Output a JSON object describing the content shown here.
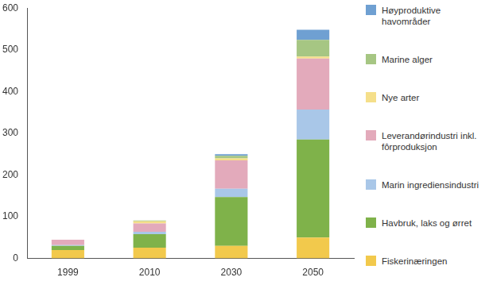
{
  "chart_data": {
    "type": "bar",
    "stacked": true,
    "legend": "right",
    "grid": false,
    "categories": [
      "1999",
      "2010",
      "2030",
      "2050"
    ],
    "ylim": [
      0,
      600
    ],
    "yticks": [
      0,
      100,
      200,
      300,
      400,
      500,
      600
    ],
    "series": [
      {
        "name": "Fiskerinæringen",
        "color": "#f2c94c",
        "values": [
          20,
          26,
          30,
          50
        ]
      },
      {
        "name": "Havbruk, laks og ørret",
        "color": "#7fb24a",
        "values": [
          10,
          32,
          117,
          235
        ]
      },
      {
        "name": "Marin ingrediensindustri",
        "color": "#a9c7e8",
        "values": [
          2,
          6,
          20,
          72
        ]
      },
      {
        "name": "Leverandørindustri inkl. fôrproduksjon",
        "color": "#e3aabb",
        "values": [
          13,
          20,
          68,
          122
        ]
      },
      {
        "name": "Nye arter",
        "color": "#f5df8a",
        "values": [
          0,
          5,
          5,
          5
        ]
      },
      {
        "name": "Marine alger",
        "color": "#a6c683",
        "values": [
          0,
          2,
          6,
          40
        ]
      },
      {
        "name": "Høyproduktive havområder",
        "color": "#6fa0d2",
        "values": [
          0,
          0,
          4,
          24
        ]
      }
    ]
  }
}
